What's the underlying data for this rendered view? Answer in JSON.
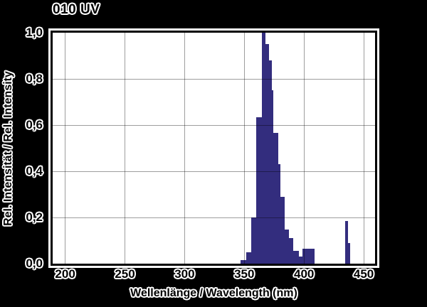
{
  "title": "010 UV",
  "colors": {
    "background": "#000000",
    "plot_background": "#ffffff",
    "bar": "#332d7e",
    "grid": "rgba(0,0,0,0.38)",
    "frame": "#000000",
    "text": "#000000",
    "text_halo": "#ffffff"
  },
  "chart_data": {
    "type": "bar",
    "title": "010 UV",
    "xlabel": "Wellenlänge / Wavelength (nm)",
    "ylabel": "Rel. Intensität / Rel. Intensity",
    "xlim": [
      189.5,
      459.5
    ],
    "ylim": [
      0,
      1.0
    ],
    "grid": true,
    "x_unit": "nm",
    "x_ticks": [
      {
        "value": 200,
        "label": "200"
      },
      {
        "value": 250,
        "label": "250"
      },
      {
        "value": 300,
        "label": "300"
      },
      {
        "value": 350,
        "label": "350"
      },
      {
        "value": 400,
        "label": "400"
      },
      {
        "value": 450,
        "label": "450"
      }
    ],
    "y_ticks": [
      {
        "value": 1.0,
        "label": "1,0"
      },
      {
        "value": 0.8,
        "label": "0,8"
      },
      {
        "value": 0.6,
        "label": "0,6"
      },
      {
        "value": 0.4,
        "label": "0,4"
      },
      {
        "value": 0.2,
        "label": "0,2"
      },
      {
        "value": 0.0,
        "label": "0,0"
      }
    ],
    "bars": [
      {
        "from_nm": 347.0,
        "to_nm": 351.5,
        "value": 0.015
      },
      {
        "from_nm": 351.5,
        "to_nm": 356.0,
        "value": 0.05
      },
      {
        "from_nm": 356.0,
        "to_nm": 360.0,
        "value": 0.2
      },
      {
        "from_nm": 360.0,
        "to_nm": 365.0,
        "value": 0.635
      },
      {
        "from_nm": 365.0,
        "to_nm": 368.0,
        "value": 1.0
      },
      {
        "from_nm": 368.0,
        "to_nm": 370.5,
        "value": 0.95
      },
      {
        "from_nm": 370.5,
        "to_nm": 373.0,
        "value": 0.88
      },
      {
        "from_nm": 373.0,
        "to_nm": 374.5,
        "value": 0.75
      },
      {
        "from_nm": 374.5,
        "to_nm": 378.5,
        "value": 0.565
      },
      {
        "from_nm": 378.5,
        "to_nm": 380.0,
        "value": 0.43
      },
      {
        "from_nm": 380.0,
        "to_nm": 384.0,
        "value": 0.29
      },
      {
        "from_nm": 384.0,
        "to_nm": 387.5,
        "value": 0.148
      },
      {
        "from_nm": 387.5,
        "to_nm": 391.0,
        "value": 0.112
      },
      {
        "from_nm": 391.0,
        "to_nm": 396.0,
        "value": 0.056
      },
      {
        "from_nm": 396.0,
        "to_nm": 399.0,
        "value": 0.03
      },
      {
        "from_nm": 399.0,
        "to_nm": 409.0,
        "value": 0.066
      },
      {
        "from_nm": 434.5,
        "to_nm": 437.0,
        "value": 0.185
      },
      {
        "from_nm": 437.0,
        "to_nm": 438.5,
        "value": 0.09
      }
    ]
  }
}
